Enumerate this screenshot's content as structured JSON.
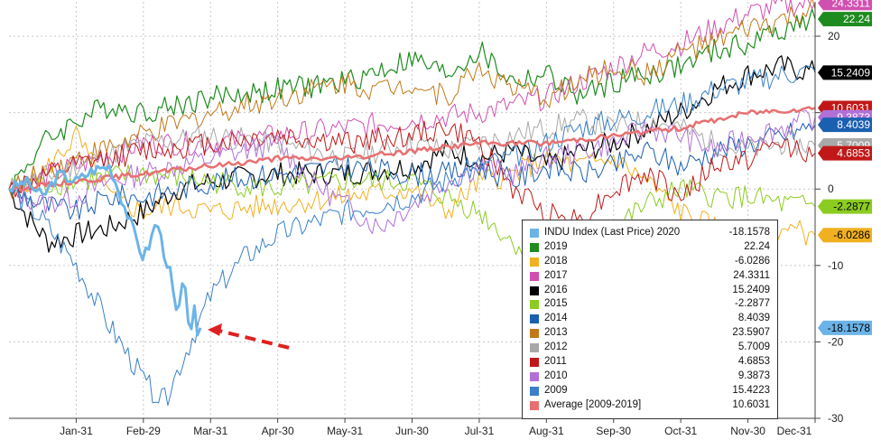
{
  "chart_data": {
    "type": "line",
    "title": "",
    "xlabel": "",
    "ylabel": "",
    "x_ticks": [
      "Jan-31",
      "Feb-29",
      "Mar-31",
      "Apr-30",
      "May-31",
      "Jun-30",
      "Jul-31",
      "Aug-31",
      "Sep-30",
      "Oct-31",
      "Nov-30",
      "Dec-31"
    ],
    "y_ticks": [
      "20",
      "10",
      "0",
      "-10",
      "-20",
      "-30"
    ],
    "ylim": [
      -30,
      24.5
    ],
    "x_months": [
      0,
      12
    ],
    "grid": true,
    "legend_position": "bottom-right",
    "series": [
      {
        "name": "INDU Index (Last Price) 2020",
        "last": "-18.1578",
        "color": "#6cb4e8",
        "width": 3,
        "x": [
          0,
          0.25,
          0.5,
          0.75,
          1,
          1.25,
          1.5,
          1.75,
          2,
          2.1,
          2.2,
          2.3,
          2.4,
          2.5,
          2.6,
          2.7,
          2.75,
          2.8,
          2.85
        ],
        "y": [
          0,
          1,
          -1,
          2,
          1,
          2.5,
          3,
          -3,
          -9,
          -7,
          -4,
          -8,
          -11,
          -17,
          -12,
          -19,
          -15,
          -20,
          -18.1578
        ]
      },
      {
        "name": "2019",
        "last": "22.24",
        "color": "#1e8b1e",
        "width": 1.2,
        "x": [
          0,
          0.5,
          1,
          1.5,
          2,
          2.5,
          3,
          4,
          5,
          6,
          6.5,
          7,
          7.5,
          8,
          8.5,
          9,
          9.5,
          10,
          10.5,
          11,
          11.5,
          12
        ],
        "y": [
          0,
          6,
          9,
          11,
          10,
          11,
          12,
          13,
          14,
          17,
          15,
          18,
          14,
          15,
          12,
          14,
          15,
          16,
          18,
          19,
          21,
          22.24
        ]
      },
      {
        "name": "2018",
        "last": "-6.0286",
        "color": "#f0b020",
        "width": 1,
        "x": [
          0,
          0.5,
          1,
          1.5,
          2,
          2.5,
          3,
          4,
          5,
          6,
          6.5,
          7,
          7.5,
          8,
          8.5,
          9,
          9.5,
          10,
          10.5,
          11,
          11.5,
          12
        ],
        "y": [
          0,
          2,
          7,
          -1,
          -3,
          -2,
          -3,
          -2,
          -1,
          0,
          -3,
          1,
          2,
          4,
          3,
          4,
          1,
          -3,
          -5,
          -6,
          -5,
          -6.0286
        ]
      },
      {
        "name": "2017",
        "last": "24.3311",
        "color": "#d050b0",
        "width": 1,
        "x": [
          0,
          1,
          2,
          3,
          4,
          5,
          6,
          7,
          8,
          8.5,
          9,
          9.5,
          10,
          10.5,
          11,
          11.5,
          12
        ],
        "y": [
          0,
          3,
          6,
          6,
          7,
          8,
          9,
          10,
          12,
          14,
          16,
          18,
          19,
          21,
          23,
          24,
          24.3311
        ]
      },
      {
        "name": "2016",
        "last": "15.2409",
        "color": "#000000",
        "width": 1.2,
        "x": [
          0,
          0.3,
          0.6,
          1,
          1.5,
          2,
          2.5,
          3,
          4,
          5,
          6,
          6.5,
          7,
          7.5,
          8,
          8.5,
          9,
          9.5,
          10,
          10.5,
          11,
          11.5,
          12
        ],
        "y": [
          0,
          -4,
          -7,
          -6,
          -5,
          -3,
          0,
          1,
          2,
          2,
          3,
          5,
          4,
          5,
          3,
          5,
          6,
          8,
          10,
          13,
          15,
          16,
          15.2409
        ]
      },
      {
        "name": "2015",
        "last": "-2.2877",
        "color": "#8ccc20",
        "width": 1,
        "x": [
          0,
          1,
          2,
          3,
          4,
          5,
          6,
          6.5,
          7,
          7.5,
          8,
          8.5,
          9,
          9.5,
          10,
          10.5,
          11,
          11.5,
          12
        ],
        "y": [
          0,
          1,
          2,
          1,
          0,
          1,
          1,
          -1,
          -3,
          -7,
          -9,
          -10,
          -5,
          -2,
          0,
          -1,
          -1,
          -2,
          -2.2877
        ]
      },
      {
        "name": "2014",
        "last": "8.4039",
        "color": "#1b5fb0",
        "width": 1,
        "x": [
          0,
          0.5,
          1,
          1.5,
          2,
          3,
          4,
          5,
          6,
          6.5,
          7,
          7.5,
          8,
          8.5,
          9,
          9.5,
          10,
          10.5,
          11,
          11.5,
          12
        ],
        "y": [
          0,
          -2,
          -3,
          -1,
          -1,
          1,
          2,
          3,
          2,
          2,
          3,
          1,
          3,
          2,
          3,
          5,
          3,
          5,
          6,
          7,
          8.4039
        ]
      },
      {
        "name": "2013",
        "last": "23.5907",
        "color": "#c07818",
        "width": 1,
        "x": [
          0,
          1,
          2,
          3,
          4,
          5,
          5.5,
          6,
          6.5,
          7,
          7.5,
          8,
          8.5,
          9,
          9.5,
          10,
          10.5,
          11,
          11.5,
          12
        ],
        "y": [
          0,
          4,
          7,
          10,
          12,
          14,
          13,
          14,
          12,
          16,
          13,
          12,
          14,
          16,
          15,
          18,
          19,
          21,
          22,
          23.5907
        ]
      },
      {
        "name": "2012",
        "last": "5.7009",
        "color": "#a8a8a8",
        "width": 1,
        "x": [
          0,
          1,
          2,
          3,
          4,
          5,
          6,
          6.5,
          7,
          7.5,
          8,
          8.5,
          9,
          9.5,
          10,
          10.5,
          11,
          11.5,
          12
        ],
        "y": [
          0,
          3,
          6,
          7,
          6,
          4,
          6,
          5,
          6,
          7,
          8,
          9,
          8,
          9,
          8,
          6,
          5,
          6,
          5.7009
        ]
      },
      {
        "name": "2011",
        "last": "4.6853",
        "color": "#c01818",
        "width": 1,
        "x": [
          0,
          1,
          2,
          3,
          4,
          5,
          6,
          6.5,
          7,
          7.5,
          8,
          8.5,
          9,
          9.5,
          10,
          10.5,
          11,
          11.5,
          12
        ],
        "y": [
          0,
          3,
          5,
          6,
          7,
          6,
          7,
          8,
          6,
          0,
          -3,
          -4,
          0,
          2,
          -1,
          3,
          4,
          6,
          4.6853
        ]
      },
      {
        "name": "2010",
        "last": "9.3873",
        "color": "#b070d8",
        "width": 1,
        "x": [
          0,
          0.5,
          1,
          1.5,
          2,
          3,
          4,
          4.5,
          5,
          5.5,
          6,
          6.5,
          7,
          7.5,
          8,
          8.5,
          9,
          9.5,
          10,
          10.5,
          11,
          11.5,
          12
        ],
        "y": [
          0,
          -2,
          -1,
          1,
          2,
          4,
          6,
          1,
          -2,
          -5,
          -2,
          1,
          3,
          2,
          4,
          5,
          6,
          8,
          7,
          5,
          7,
          8,
          9.3873
        ]
      },
      {
        "name": "2009",
        "last": "15.4223",
        "color": "#3a80c8",
        "width": 1,
        "x": [
          0,
          0.5,
          1,
          1.5,
          2,
          2.3,
          2.6,
          3,
          3.5,
          4,
          5,
          6,
          6.5,
          7,
          7.5,
          8,
          8.5,
          9,
          9.5,
          10,
          10.5,
          11,
          11.5,
          12
        ],
        "y": [
          0,
          -4,
          -10,
          -18,
          -25,
          -28,
          -22,
          -14,
          -9,
          -6,
          -3,
          -1,
          1,
          3,
          4,
          6,
          8,
          9,
          10,
          11,
          13,
          14,
          15,
          15.4223
        ]
      },
      {
        "name": "Average [2009-2019]",
        "last": "10.6031",
        "color": "#e87070",
        "width": 2.5,
        "x": [
          0,
          1,
          2,
          3,
          4,
          5,
          6,
          7,
          8,
          9,
          10,
          11,
          12
        ],
        "y": [
          0,
          1,
          2,
          3,
          4,
          4,
          5,
          6,
          6,
          7,
          8,
          10,
          10.6031
        ]
      }
    ],
    "right_tags": [
      {
        "text": "24.3311",
        "bg": "#d050b0",
        "fg": "#ffffff",
        "y": 24.3311
      },
      {
        "text": "22.24",
        "bg": "#1e8b1e",
        "fg": "#ffffff",
        "y": 22.24
      },
      {
        "text": "15.2409",
        "bg": "#000000",
        "fg": "#ffffff",
        "y": 15.2409
      },
      {
        "text": "10.6031",
        "bg": "#c01818",
        "fg": "#ffffff",
        "y": 10.6031
      },
      {
        "text": "9.3873",
        "bg": "#b070d8",
        "fg": "#ffffff",
        "y": 9.3873
      },
      {
        "text": "8.4039",
        "bg": "#1b5fb0",
        "fg": "#ffffff",
        "y": 8.4039
      },
      {
        "text": "5.7009",
        "bg": "#a8a8a8",
        "fg": "#ffffff",
        "y": 5.7009
      },
      {
        "text": "4.6853",
        "bg": "#c01818",
        "fg": "#ffffff",
        "y": 4.6853
      },
      {
        "text": "-2.2877",
        "bg": "#8ccc20",
        "fg": "#000000",
        "y": -2.2877
      },
      {
        "text": "-6.0286",
        "bg": "#f0b020",
        "fg": "#000000",
        "y": -6.0286
      },
      {
        "text": "-18.1578",
        "bg": "#6cb4e8",
        "fg": "#000000",
        "y": -18.1578
      }
    ],
    "annotations": [
      {
        "type": "dashed-arrow",
        "color": "#e02020",
        "target_x": 2.85,
        "target_y": -18.4
      }
    ]
  }
}
